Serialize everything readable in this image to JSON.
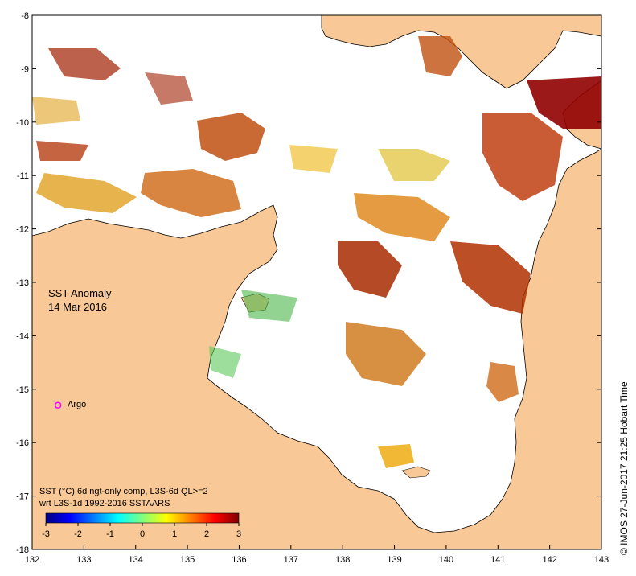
{
  "map": {
    "lon_range": [
      132,
      143
    ],
    "lat_range": [
      -18,
      -8
    ],
    "lon_ticks": [
      "132",
      "133",
      "134",
      "135",
      "136",
      "137",
      "138",
      "139",
      "140",
      "141",
      "142",
      "143"
    ],
    "lat_ticks": [
      "-8",
      "-9",
      "-10",
      "-11",
      "-12",
      "-13",
      "-14",
      "-15",
      "-16",
      "-17",
      "-18"
    ],
    "land_color": "#f8c896",
    "sea_color": "#ffffff"
  },
  "title": {
    "line1": "SST Anomaly",
    "line2": "14 Mar 2016"
  },
  "argo": {
    "label": "Argo",
    "lon": 132.5,
    "lat": -15.3,
    "color": "#ff00ff"
  },
  "description": {
    "line1": "SST (°C) 6d ngt-only comp, L3S-6d QL>=2",
    "line2": "wrt L3S-1d 1992-2016 SSTAARS"
  },
  "colorbar": {
    "ticks": [
      "-3",
      "-2",
      "-1",
      "0",
      "1",
      "2",
      "3"
    ],
    "min": -3,
    "max": 3,
    "colors": [
      "#00007f",
      "#0000ff",
      "#007fff",
      "#00ffff",
      "#7fff7f",
      "#ffff00",
      "#ff7f00",
      "#ff0000",
      "#7f0000"
    ]
  },
  "credit": "© IMOS 27-Jun-2017 21:25 Hobart Time"
}
